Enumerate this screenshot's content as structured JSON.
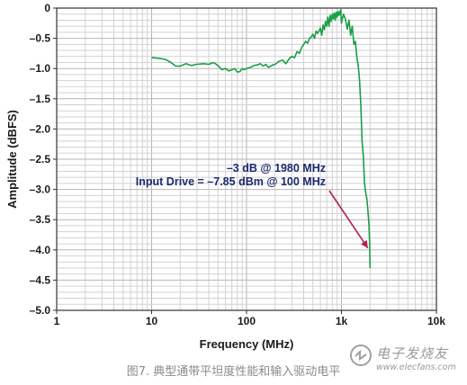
{
  "chart_data": {
    "type": "line",
    "x_scale": "log",
    "xlim": [
      1,
      10000
    ],
    "ylim": [
      -5.0,
      0
    ],
    "xlabel": "Frequency (MHz)",
    "ylabel": "Amplitude (dBFS)",
    "x_ticks": [
      {
        "value": 1,
        "label": "1"
      },
      {
        "value": 10,
        "label": "10"
      },
      {
        "value": 100,
        "label": "100"
      },
      {
        "value": 1000,
        "label": "1k"
      },
      {
        "value": 10000,
        "label": "10k"
      }
    ],
    "y_ticks": [
      {
        "value": 0,
        "label": "0"
      },
      {
        "value": -0.5,
        "label": "–0.5"
      },
      {
        "value": -1.0,
        "label": "–1.0"
      },
      {
        "value": -1.5,
        "label": "–1.5"
      },
      {
        "value": -2.0,
        "label": "–2.0"
      },
      {
        "value": -2.5,
        "label": "–2.5"
      },
      {
        "value": -3.0,
        "label": "–3.0"
      },
      {
        "value": -3.5,
        "label": "–3.5"
      },
      {
        "value": -4.0,
        "label": "–4.0"
      },
      {
        "value": -4.5,
        "label": "–4.5"
      },
      {
        "value": -5.0,
        "label": "–5.0"
      }
    ],
    "grid": true,
    "series": [
      {
        "color": "#1a9e45",
        "x": [
          10,
          12,
          14,
          16,
          18,
          20,
          23,
          26,
          30,
          35,
          40,
          45,
          50,
          55,
          60,
          65,
          70,
          75,
          80,
          85,
          90,
          95,
          100,
          110,
          120,
          130,
          140,
          150,
          160,
          170,
          180,
          190,
          200,
          220,
          240,
          260,
          280,
          300,
          320,
          340,
          360,
          380,
          400,
          420,
          440,
          460,
          480,
          500,
          520,
          540,
          560,
          580,
          600,
          620,
          640,
          660,
          680,
          700,
          720,
          740,
          760,
          780,
          800,
          820,
          840,
          860,
          880,
          900,
          920,
          940,
          960,
          980,
          1000,
          1050,
          1100,
          1150,
          1200,
          1250,
          1300,
          1350,
          1400,
          1450,
          1500,
          1550,
          1600,
          1650,
          1700,
          1750,
          1800,
          1850,
          1900,
          1950,
          1980,
          2000
        ],
        "values": [
          -0.82,
          -0.83,
          -0.85,
          -0.9,
          -0.96,
          -0.96,
          -0.92,
          -0.95,
          -0.93,
          -0.92,
          -0.93,
          -0.9,
          -0.95,
          -1.02,
          -1.0,
          -1.04,
          -1.02,
          -1.0,
          -1.06,
          -1.05,
          -1.0,
          -1.02,
          -1.0,
          -0.98,
          -0.95,
          -0.94,
          -0.92,
          -0.96,
          -0.93,
          -0.98,
          -0.96,
          -0.94,
          -0.93,
          -0.88,
          -0.86,
          -0.92,
          -0.84,
          -0.8,
          -0.82,
          -0.72,
          -0.75,
          -0.65,
          -0.6,
          -0.55,
          -0.58,
          -0.5,
          -0.48,
          -0.43,
          -0.5,
          -0.38,
          -0.42,
          -0.38,
          -0.33,
          -0.45,
          -0.28,
          -0.36,
          -0.22,
          -0.3,
          -0.15,
          -0.3,
          -0.12,
          -0.22,
          -0.1,
          -0.18,
          -0.08,
          -0.2,
          -0.07,
          -0.15,
          -0.05,
          -0.12,
          -0.08,
          -0.03,
          -0.25,
          -0.1,
          -0.18,
          -0.35,
          -0.2,
          -0.45,
          -0.3,
          -0.6,
          -0.55,
          -0.8,
          -0.95,
          -1.2,
          -1.6,
          -2.2,
          -2.45,
          -2.9,
          -3.05,
          -3.15,
          -3.35,
          -3.6,
          -3.9,
          -4.3
        ]
      }
    ],
    "annotations": [
      {
        "lines": [
          "–3 dB @ 1980 MHz",
          "Input Drive = –7.85 dBm @ 100 MHz"
        ],
        "arrow_to": {
          "x": 1980,
          "y": -4.0
        },
        "arrow_color": "#b0204a"
      }
    ]
  },
  "caption": "图7. 典型通带平坦度性能和输入驱动电平",
  "watermark": {
    "name": "电子发烧友",
    "url": "www.elecfans.com"
  }
}
